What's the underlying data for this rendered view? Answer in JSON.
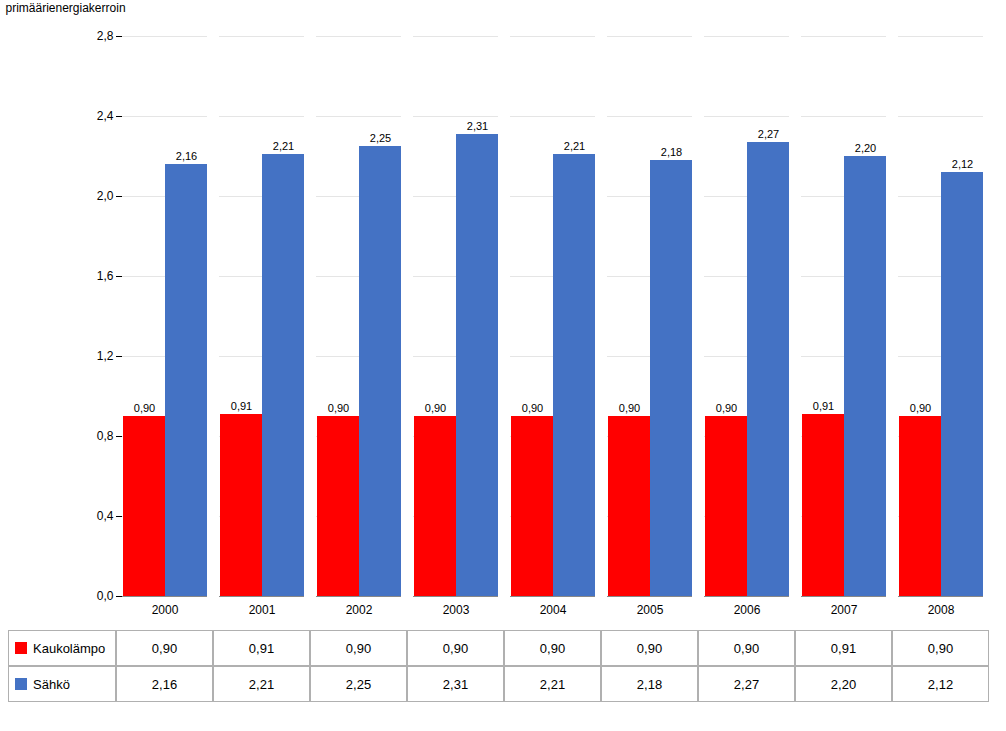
{
  "chart_data": {
    "type": "bar",
    "categories": [
      "2000",
      "2001",
      "2002",
      "2003",
      "2004",
      "2005",
      "2006",
      "2007",
      "2008"
    ],
    "series": [
      {
        "name": "Kaukolämpo",
        "color": "#FF0000",
        "values": [
          0.9,
          0.91,
          0.9,
          0.9,
          0.9,
          0.9,
          0.9,
          0.91,
          0.9
        ],
        "value_labels": [
          "0,90",
          "0,91",
          "0,90",
          "0,90",
          "0,90",
          "0,90",
          "0,90",
          "0,91",
          "0,90"
        ]
      },
      {
        "name": "Sähkö",
        "color": "#4472C4",
        "values": [
          2.16,
          2.21,
          2.25,
          2.31,
          2.21,
          2.18,
          2.27,
          2.2,
          2.12
        ],
        "value_labels": [
          "2,16",
          "2,21",
          "2,25",
          "2,31",
          "2,21",
          "2,18",
          "2,27",
          "2,20",
          "2,12"
        ]
      }
    ],
    "ylabel": "primäärienergiakerroin",
    "ylim": [
      0.0,
      2.8
    ],
    "yticks": [
      {
        "value": 0.0,
        "label": "0,0"
      },
      {
        "value": 0.4,
        "label": "0,4"
      },
      {
        "value": 0.8,
        "label": "0,8"
      },
      {
        "value": 1.2,
        "label": "1,2"
      },
      {
        "value": 1.6,
        "label": "1,6"
      },
      {
        "value": 2.0,
        "label": "2,0"
      },
      {
        "value": 2.4,
        "label": "2,4"
      },
      {
        "value": 2.8,
        "label": "2,8"
      }
    ],
    "grid": true,
    "data_labels": true
  }
}
